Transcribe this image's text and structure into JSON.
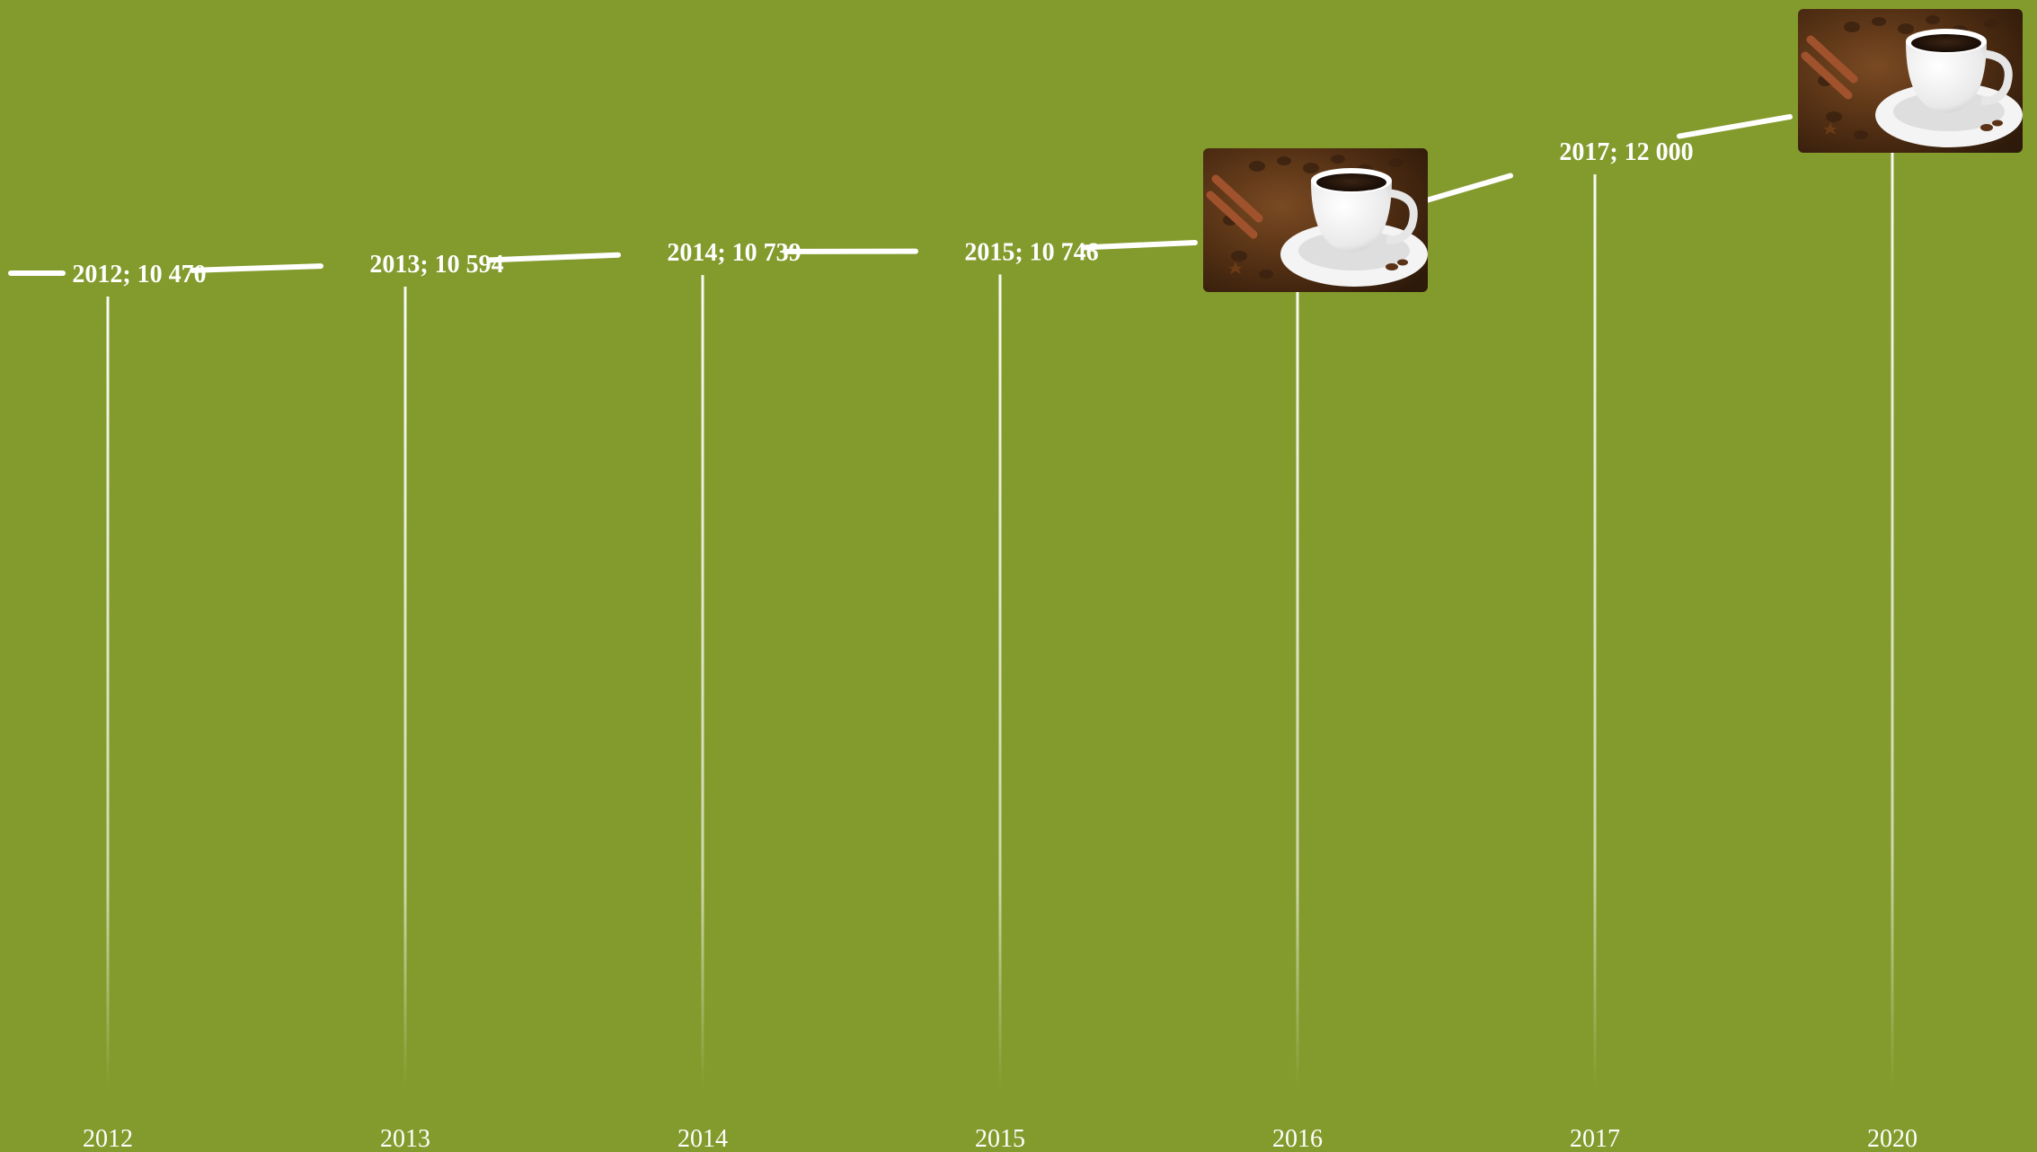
{
  "chart_data": {
    "type": "line",
    "title": "",
    "xlabel": "",
    "ylabel": "",
    "categories": [
      "2012",
      "2013",
      "2014",
      "2015",
      "2016",
      "2017",
      "2020"
    ],
    "series": [
      {
        "values": [
          10470,
          10594,
          10739,
          10746,
          null,
          12000,
          null
        ],
        "data_labels": [
          "2012; 10 470",
          "2013; 10 594",
          "2014; 10 739",
          "2015; 10 746",
          "",
          "2017; 12 000",
          ""
        ],
        "markers": [
          "none",
          "none",
          "none",
          "none",
          "coffee-cup-image",
          "none",
          "coffee-cup-image"
        ]
      }
    ],
    "grid": "vertical drop lines at each category",
    "legend": "none",
    "colors": {
      "background": "#839a2c",
      "line": "#ffffff",
      "text": "#ffffff"
    }
  }
}
